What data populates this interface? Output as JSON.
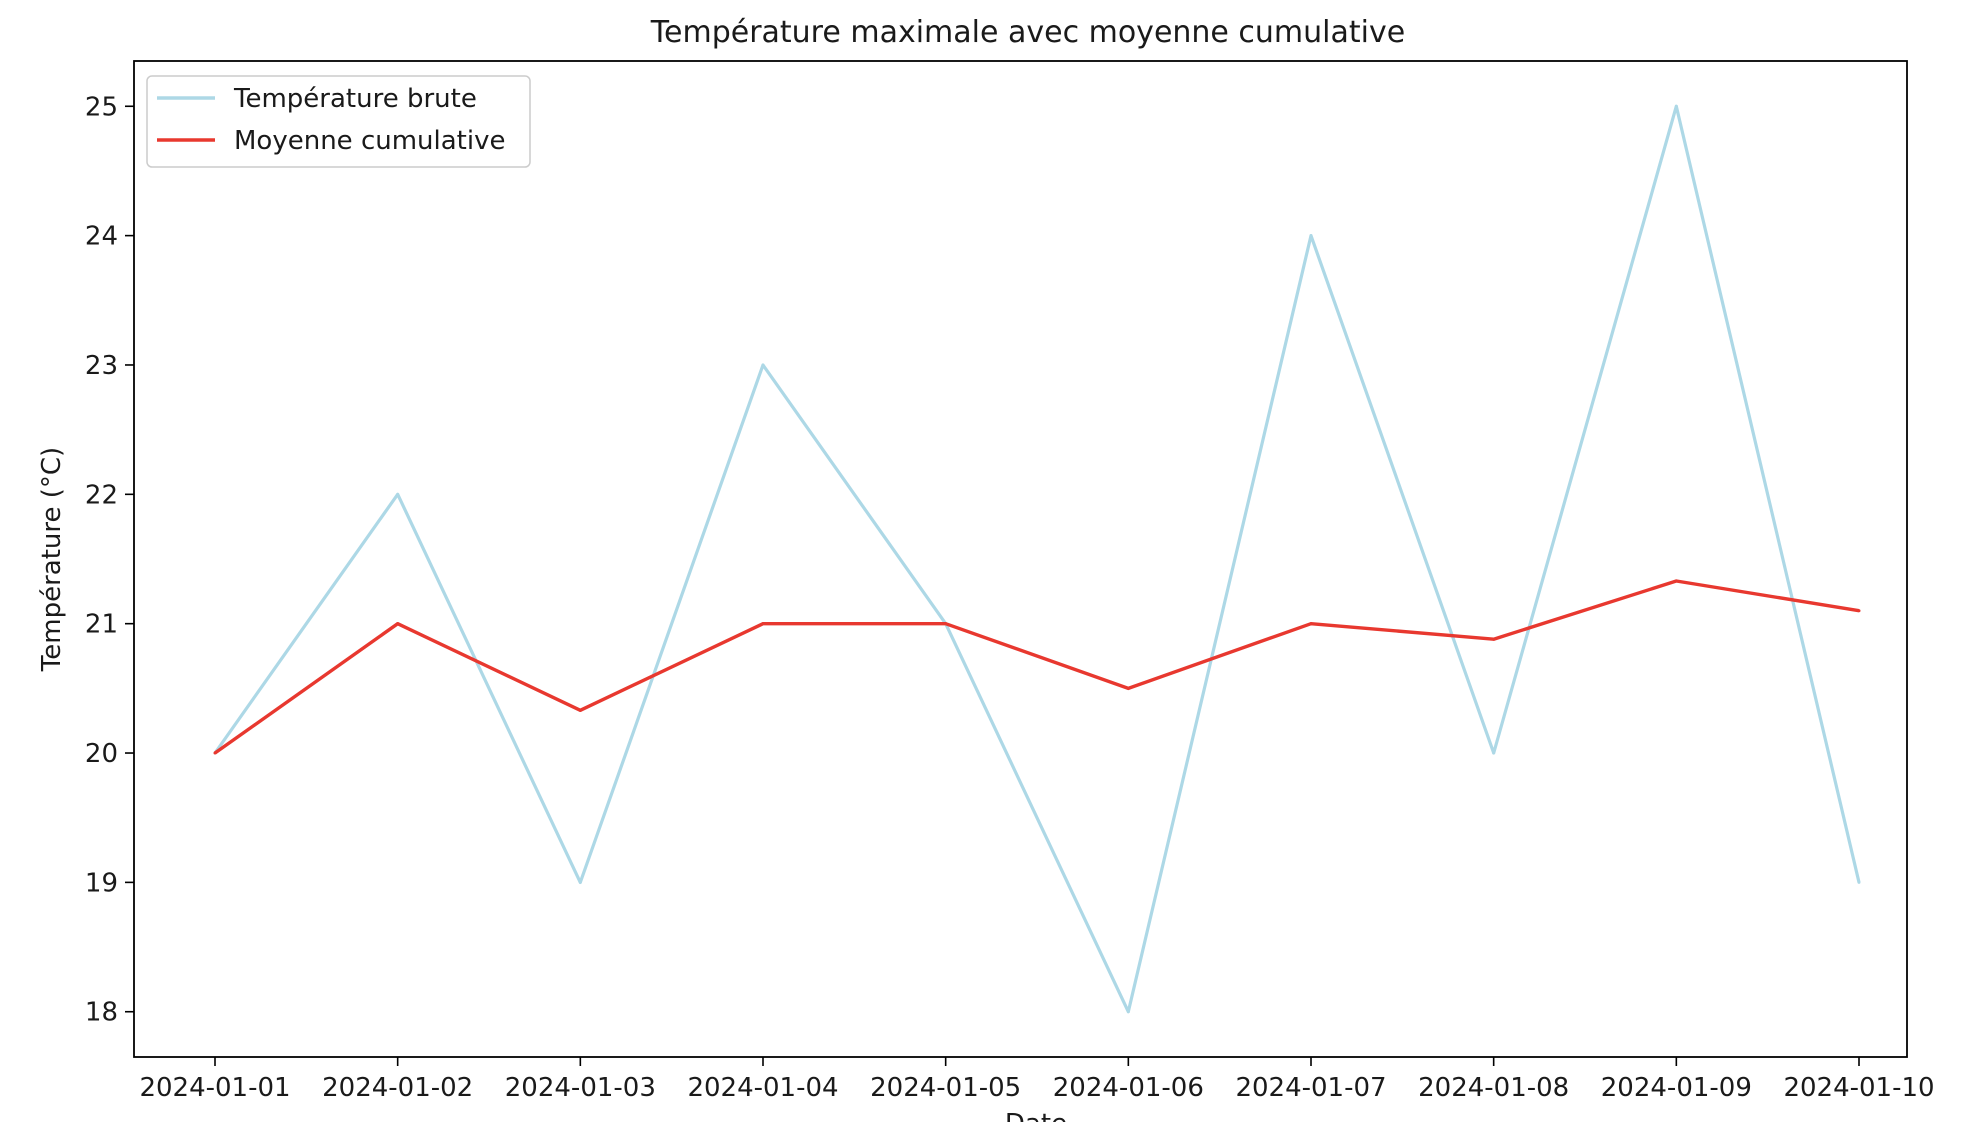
{
  "chart_data": {
    "type": "line",
    "title": "Température maximale avec moyenne cumulative",
    "xlabel": "Date",
    "ylabel": "Température (°C)",
    "categories": [
      "2024-01-01",
      "2024-01-02",
      "2024-01-03",
      "2024-01-04",
      "2024-01-05",
      "2024-01-06",
      "2024-01-07",
      "2024-01-08",
      "2024-01-09",
      "2024-01-10"
    ],
    "yticks": [
      18,
      19,
      20,
      21,
      22,
      23,
      24,
      25
    ],
    "ylim": [
      17.65,
      25.35
    ],
    "grid": false,
    "legend_position": "top-left",
    "series": [
      {
        "name": "Température brute",
        "color": "#add8e6",
        "values": [
          20,
          22,
          19,
          23,
          21,
          18,
          24,
          20,
          25,
          19
        ]
      },
      {
        "name": "Moyenne cumulative",
        "color": "#e8382f",
        "values": [
          20.0,
          21.0,
          20.33,
          21.0,
          21.0,
          20.5,
          21.0,
          20.88,
          21.33,
          21.1
        ]
      }
    ]
  }
}
